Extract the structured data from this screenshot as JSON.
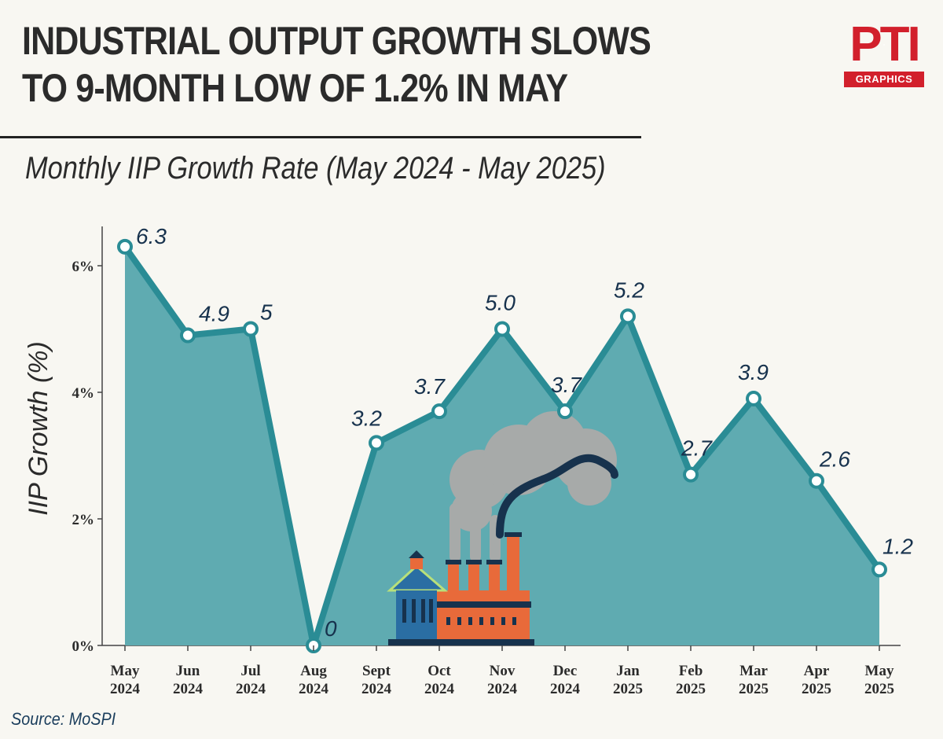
{
  "header": {
    "title_line1": "INDUSTRIAL OUTPUT GROWTH SLOWS",
    "title_line2": "TO 9-MONTH LOW OF 1.2% IN MAY",
    "subtitle": "Monthly IIP Growth Rate (May 2024 - May 2025)"
  },
  "logo": {
    "mark": "PTI",
    "band": "GRAPHICS"
  },
  "footer": {
    "source": "Source: MoSPI"
  },
  "colors": {
    "area": "#5fabb1",
    "line": "#2a8c95",
    "marker_fill": "#ffffff",
    "label": "#17324d",
    "brand": "#d2202c"
  },
  "chart_data": {
    "type": "area",
    "title": "Monthly IIP Growth Rate (May 2024 - May 2025)",
    "xlabel": "",
    "ylabel": "IIP Growth (%)",
    "ylim": [
      0,
      6.6
    ],
    "yticks": [
      0,
      2,
      4,
      6
    ],
    "ytick_labels": [
      "0%",
      "2%",
      "4%",
      "6%"
    ],
    "categories": [
      [
        "May",
        "2024"
      ],
      [
        "Jun",
        "2024"
      ],
      [
        "Jul",
        "2024"
      ],
      [
        "Aug",
        "2024"
      ],
      [
        "Sept",
        "2024"
      ],
      [
        "Oct",
        "2024"
      ],
      [
        "Nov",
        "2024"
      ],
      [
        "Dec",
        "2024"
      ],
      [
        "Jan",
        "2025"
      ],
      [
        "Feb",
        "2025"
      ],
      [
        "Mar",
        "2025"
      ],
      [
        "Apr",
        "2025"
      ],
      [
        "May",
        "2025"
      ]
    ],
    "values": [
      6.3,
      4.9,
      5.0,
      0,
      3.2,
      3.7,
      5.0,
      3.7,
      5.2,
      2.7,
      3.9,
      2.6,
      1.2
    ],
    "data_labels": [
      "6.3",
      "4.9",
      "5",
      "0",
      "3.2",
      "3.7",
      "5.0",
      "3.7",
      "5.2",
      "2.7",
      "3.9",
      "2.6",
      "1.2"
    ]
  }
}
